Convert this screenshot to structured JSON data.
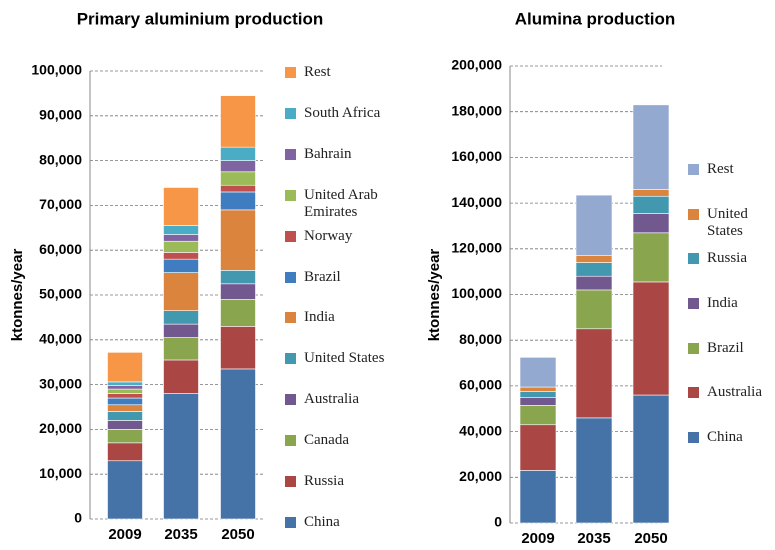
{
  "chart_data": [
    {
      "type": "bar",
      "stacked": true,
      "title": "Primary aluminium production",
      "ylabel": "ktonnes/year",
      "categories": [
        "2009",
        "2035",
        "2050"
      ],
      "series": [
        {
          "name": "China",
          "color": "#4572A7",
          "values": [
            13000,
            28000,
            33500
          ]
        },
        {
          "name": "Russia",
          "color": "#AA4643",
          "values": [
            4000,
            7500,
            9500
          ]
        },
        {
          "name": "Canada",
          "color": "#89A54E",
          "values": [
            3000,
            5000,
            6000
          ]
        },
        {
          "name": "Australia",
          "color": "#71588F",
          "values": [
            2000,
            3000,
            3500
          ]
        },
        {
          "name": "United States",
          "color": "#4198AF",
          "values": [
            2000,
            3000,
            3000
          ]
        },
        {
          "name": "India",
          "color": "#DB843D",
          "values": [
            1500,
            8500,
            13500
          ]
        },
        {
          "name": "Brazil",
          "color": "#3F7CC0",
          "values": [
            1500,
            3000,
            4000
          ]
        },
        {
          "name": "Norway",
          "color": "#C0504D",
          "values": [
            1000,
            1500,
            1500
          ]
        },
        {
          "name": "United Arab Emirates",
          "color": "#9BBB59",
          "values": [
            1000,
            2500,
            3000
          ]
        },
        {
          "name": "Bahrain",
          "color": "#8064A2",
          "values": [
            800,
            1500,
            2500
          ]
        },
        {
          "name": "South Africa",
          "color": "#4BACC6",
          "values": [
            800,
            2000,
            3000
          ]
        },
        {
          "name": "Rest",
          "color": "#F79646",
          "values": [
            6600,
            8500,
            11500
          ]
        }
      ],
      "ylim": [
        0,
        100000
      ],
      "yticks": [
        0,
        {
          "value": 10000,
          "label": "10,000"
        },
        {
          "value": 20000,
          "label": "20,000"
        },
        {
          "value": 30000,
          "label": "30,000"
        },
        {
          "value": 40000,
          "label": "40,000"
        },
        {
          "value": 50000,
          "label": "50,000"
        },
        {
          "value": 60000,
          "label": "60,000"
        },
        {
          "value": 70000,
          "label": "70,000"
        },
        {
          "value": 80000,
          "label": "80,000"
        },
        {
          "value": 90000,
          "label": "90,000"
        },
        {
          "value": 100000,
          "label": "100,000"
        }
      ],
      "grid": true
    },
    {
      "type": "bar",
      "stacked": true,
      "title": "Alumina production",
      "ylabel": "ktonnes/year",
      "categories": [
        "2009",
        "2035",
        "2050"
      ],
      "series": [
        {
          "name": "China",
          "color": "#4572A7",
          "values": [
            23000,
            46000,
            56000
          ]
        },
        {
          "name": "Australia",
          "color": "#AA4643",
          "values": [
            20000,
            39000,
            49500
          ]
        },
        {
          "name": "Brazil",
          "color": "#89A54E",
          "values": [
            8500,
            17000,
            21500
          ]
        },
        {
          "name": "India",
          "color": "#71588F",
          "values": [
            3500,
            6000,
            8500
          ]
        },
        {
          "name": "Russia",
          "color": "#4198AF",
          "values": [
            2500,
            6000,
            7500
          ]
        },
        {
          "name": "United States",
          "color": "#DB843D",
          "values": [
            2000,
            3000,
            3000
          ]
        },
        {
          "name": "Rest",
          "color": "#93A9CF",
          "values": [
            13000,
            26500,
            37000
          ]
        }
      ],
      "ylim": [
        0,
        200000
      ],
      "yticks": [
        0,
        {
          "value": 20000,
          "label": "20,000"
        },
        {
          "value": 40000,
          "label": "40,000"
        },
        {
          "value": 60000,
          "label": "60,000"
        },
        {
          "value": 80000,
          "label": "80,000"
        },
        {
          "value": 100000,
          "label": "100,000"
        },
        {
          "value": 120000,
          "label": "120,000"
        },
        {
          "value": 140000,
          "label": "140,000"
        },
        {
          "value": 160000,
          "label": "160,000"
        },
        {
          "value": 180000,
          "label": "180,000"
        },
        {
          "value": 200000,
          "label": "200,000"
        }
      ],
      "grid": true
    }
  ]
}
